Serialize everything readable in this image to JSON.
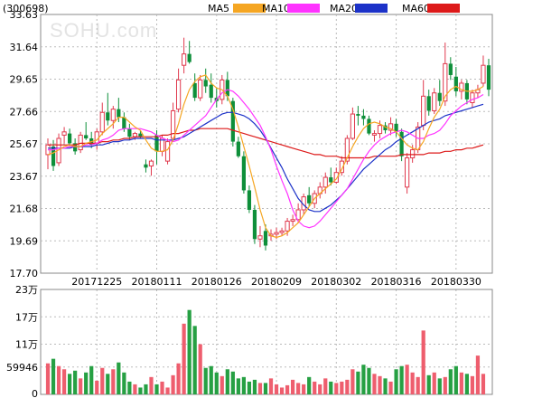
{
  "chart_data": {
    "type": "candlestick",
    "symbol": "(300698)",
    "watermark": "SOHU.com",
    "legend": [
      {
        "name": "MA5",
        "color": "#f5a623"
      },
      {
        "name": "MA10",
        "color": "#ff33ff"
      },
      {
        "name": "MA20",
        "color": "#1c32c8"
      },
      {
        "name": "MA60",
        "color": "#dd1a1a"
      }
    ],
    "colors": {
      "up": "#e0394d",
      "down": "#0e8f3a",
      "up_volume": "#ee5e6e",
      "down_volume": "#26a043"
    },
    "price_axis": {
      "ticks": [
        "33.63",
        "31.64",
        "29.65",
        "27.66",
        "25.67",
        "23.67",
        "21.68",
        "19.69",
        "17.70"
      ],
      "min": 17.7,
      "max": 33.63
    },
    "date_labels": [
      {
        "label": "20171225",
        "index": 9
      },
      {
        "label": "20180111",
        "index": 20
      },
      {
        "label": "20180126",
        "index": 31
      },
      {
        "label": "20180209",
        "index": 42
      },
      {
        "label": "20180302",
        "index": 53
      },
      {
        "label": "20180316",
        "index": 64
      },
      {
        "label": "20180330",
        "index": 75
      }
    ],
    "candles": [
      {
        "o": 25.0,
        "h": 26.0,
        "l": 24.1,
        "c": 25.6
      },
      {
        "o": 25.5,
        "h": 25.9,
        "l": 24.0,
        "c": 24.3
      },
      {
        "o": 24.5,
        "h": 26.3,
        "l": 24.3,
        "c": 26.0
      },
      {
        "o": 26.2,
        "h": 26.7,
        "l": 25.7,
        "c": 26.4
      },
      {
        "o": 26.3,
        "h": 26.6,
        "l": 25.5,
        "c": 25.7
      },
      {
        "o": 25.7,
        "h": 26.0,
        "l": 25.0,
        "c": 25.2
      },
      {
        "o": 25.3,
        "h": 26.4,
        "l": 25.1,
        "c": 26.2
      },
      {
        "o": 26.2,
        "h": 27.0,
        "l": 25.9,
        "c": 26.0
      },
      {
        "o": 26.0,
        "h": 26.4,
        "l": 25.4,
        "c": 25.6
      },
      {
        "o": 25.7,
        "h": 26.6,
        "l": 25.3,
        "c": 26.4
      },
      {
        "o": 26.4,
        "h": 28.2,
        "l": 26.2,
        "c": 27.6
      },
      {
        "o": 27.6,
        "h": 28.8,
        "l": 26.8,
        "c": 27.1
      },
      {
        "o": 27.1,
        "h": 28.0,
        "l": 26.6,
        "c": 27.8
      },
      {
        "o": 27.8,
        "h": 28.5,
        "l": 27.0,
        "c": 27.3
      },
      {
        "o": 27.3,
        "h": 27.6,
        "l": 26.4,
        "c": 26.6
      },
      {
        "o": 26.6,
        "h": 26.9,
        "l": 25.9,
        "c": 26.1
      },
      {
        "o": 26.1,
        "h": 26.4,
        "l": 25.9,
        "c": 26.3
      },
      {
        "o": 26.3,
        "h": 26.5,
        "l": 26.0,
        "c": 26.1
      },
      {
        "o": 24.4,
        "h": 24.7,
        "l": 23.9,
        "c": 24.2
      },
      {
        "o": 24.3,
        "h": 24.7,
        "l": 23.7,
        "c": 24.6
      },
      {
        "o": 26.2,
        "h": 26.5,
        "l": 24.4,
        "c": 25.2
      },
      {
        "o": 25.2,
        "h": 26.2,
        "l": 24.9,
        "c": 26.0
      },
      {
        "o": 24.6,
        "h": 26.0,
        "l": 24.4,
        "c": 25.8
      },
      {
        "o": 26.0,
        "h": 28.2,
        "l": 25.8,
        "c": 27.7
      },
      {
        "o": 27.8,
        "h": 30.3,
        "l": 27.6,
        "c": 29.6
      },
      {
        "o": 30.5,
        "h": 32.2,
        "l": 30.0,
        "c": 31.2
      },
      {
        "o": 31.2,
        "h": 32.0,
        "l": 30.6,
        "c": 30.7
      },
      {
        "o": 29.4,
        "h": 30.0,
        "l": 28.3,
        "c": 28.5
      },
      {
        "o": 28.5,
        "h": 29.9,
        "l": 28.3,
        "c": 29.6
      },
      {
        "o": 29.6,
        "h": 30.3,
        "l": 28.8,
        "c": 29.2
      },
      {
        "o": 29.3,
        "h": 30.0,
        "l": 28.2,
        "c": 28.5
      },
      {
        "o": 28.5,
        "h": 29.1,
        "l": 27.9,
        "c": 28.3
      },
      {
        "o": 28.4,
        "h": 29.9,
        "l": 28.1,
        "c": 29.6
      },
      {
        "o": 29.6,
        "h": 30.1,
        "l": 28.3,
        "c": 28.6
      },
      {
        "o": 28.3,
        "h": 28.5,
        "l": 25.5,
        "c": 25.8
      },
      {
        "o": 25.8,
        "h": 26.1,
        "l": 24.8,
        "c": 24.9
      },
      {
        "o": 24.9,
        "h": 25.2,
        "l": 22.6,
        "c": 22.8
      },
      {
        "o": 22.8,
        "h": 23.1,
        "l": 21.4,
        "c": 21.6
      },
      {
        "o": 21.6,
        "h": 21.9,
        "l": 19.5,
        "c": 19.8
      },
      {
        "o": 19.8,
        "h": 20.6,
        "l": 19.3,
        "c": 20.0
      },
      {
        "o": 20.3,
        "h": 20.7,
        "l": 19.1,
        "c": 19.4
      },
      {
        "o": 20.0,
        "h": 20.4,
        "l": 19.7,
        "c": 20.1
      },
      {
        "o": 20.1,
        "h": 20.5,
        "l": 19.8,
        "c": 20.2
      },
      {
        "o": 20.2,
        "h": 20.5,
        "l": 20.0,
        "c": 20.3
      },
      {
        "o": 20.3,
        "h": 21.1,
        "l": 20.0,
        "c": 20.9
      },
      {
        "o": 20.9,
        "h": 21.3,
        "l": 20.6,
        "c": 21.0
      },
      {
        "o": 21.0,
        "h": 22.0,
        "l": 20.8,
        "c": 21.6
      },
      {
        "o": 21.6,
        "h": 22.6,
        "l": 21.3,
        "c": 22.4
      },
      {
        "o": 22.5,
        "h": 23.0,
        "l": 21.8,
        "c": 22.0
      },
      {
        "o": 22.0,
        "h": 22.8,
        "l": 21.7,
        "c": 22.6
      },
      {
        "o": 22.6,
        "h": 23.3,
        "l": 22.3,
        "c": 23.0
      },
      {
        "o": 23.0,
        "h": 23.9,
        "l": 22.6,
        "c": 23.6
      },
      {
        "o": 23.6,
        "h": 24.2,
        "l": 23.1,
        "c": 23.3
      },
      {
        "o": 23.3,
        "h": 24.2,
        "l": 23.2,
        "c": 23.9
      },
      {
        "o": 23.9,
        "h": 24.9,
        "l": 23.7,
        "c": 24.6
      },
      {
        "o": 24.6,
        "h": 26.2,
        "l": 24.4,
        "c": 26.0
      },
      {
        "o": 26.0,
        "h": 27.9,
        "l": 25.9,
        "c": 27.5
      },
      {
        "o": 27.5,
        "h": 28.0,
        "l": 26.8,
        "c": 27.4
      },
      {
        "o": 27.4,
        "h": 27.8,
        "l": 26.8,
        "c": 27.2
      },
      {
        "o": 27.2,
        "h": 27.4,
        "l": 26.2,
        "c": 26.3
      },
      {
        "o": 26.2,
        "h": 26.5,
        "l": 25.8,
        "c": 26.3
      },
      {
        "o": 26.3,
        "h": 27.1,
        "l": 26.0,
        "c": 26.8
      },
      {
        "o": 26.8,
        "h": 27.0,
        "l": 26.3,
        "c": 26.5
      },
      {
        "o": 26.5,
        "h": 27.3,
        "l": 26.2,
        "c": 26.9
      },
      {
        "o": 26.9,
        "h": 27.2,
        "l": 26.1,
        "c": 26.4
      },
      {
        "o": 26.4,
        "h": 26.6,
        "l": 24.6,
        "c": 24.9
      },
      {
        "o": 23.0,
        "h": 25.1,
        "l": 22.6,
        "c": 24.8
      },
      {
        "o": 24.8,
        "h": 25.6,
        "l": 24.5,
        "c": 25.3
      },
      {
        "o": 25.3,
        "h": 27.0,
        "l": 25.1,
        "c": 26.7
      },
      {
        "o": 26.8,
        "h": 29.6,
        "l": 26.5,
        "c": 28.6
      },
      {
        "o": 28.6,
        "h": 29.0,
        "l": 27.4,
        "c": 27.7
      },
      {
        "o": 27.7,
        "h": 29.1,
        "l": 27.5,
        "c": 28.8
      },
      {
        "o": 28.8,
        "h": 29.6,
        "l": 28.0,
        "c": 28.3
      },
      {
        "o": 28.3,
        "h": 31.9,
        "l": 28.0,
        "c": 30.6
      },
      {
        "o": 30.6,
        "h": 31.0,
        "l": 29.6,
        "c": 29.9
      },
      {
        "o": 29.8,
        "h": 30.4,
        "l": 28.6,
        "c": 28.9
      },
      {
        "o": 28.9,
        "h": 29.6,
        "l": 28.4,
        "c": 29.4
      },
      {
        "o": 29.4,
        "h": 29.6,
        "l": 28.1,
        "c": 28.4
      },
      {
        "o": 28.2,
        "h": 29.0,
        "l": 27.9,
        "c": 28.8
      },
      {
        "o": 28.8,
        "h": 29.3,
        "l": 28.5,
        "c": 29.0
      },
      {
        "o": 29.4,
        "h": 31.1,
        "l": 29.2,
        "c": 30.5
      },
      {
        "o": 30.5,
        "h": 30.9,
        "l": 28.6,
        "c": 29.0
      }
    ],
    "ma5": [
      25.0,
      25.1,
      25.3,
      25.5,
      25.6,
      25.5,
      25.5,
      25.7,
      25.8,
      25.9,
      26.3,
      26.6,
      26.9,
      27.3,
      27.3,
      27.0,
      26.7,
      26.5,
      25.9,
      25.4,
      25.2,
      25.2,
      25.3,
      25.9,
      26.9,
      28.1,
      29.0,
      29.5,
      29.8,
      29.9,
      29.4,
      29.1,
      29.0,
      28.6,
      27.8,
      26.7,
      25.5,
      24.3,
      23.0,
      21.6,
      20.5,
      20.0,
      19.9,
      20.0,
      20.2,
      20.5,
      20.8,
      21.3,
      21.8,
      22.3,
      22.6,
      22.9,
      23.2,
      23.5,
      24.1,
      24.8,
      25.5,
      26.1,
      26.6,
      26.9,
      27.0,
      26.9,
      26.7,
      26.6,
      26.4,
      26.0,
      25.6,
      25.4,
      25.3,
      25.8,
      26.6,
      27.3,
      27.8,
      28.6,
      29.0,
      29.2,
      29.0,
      28.9,
      28.9,
      29.0,
      29.2
    ],
    "ma10": [
      25.3,
      25.3,
      25.4,
      25.4,
      25.5,
      25.5,
      25.5,
      25.6,
      25.6,
      25.7,
      25.9,
      26.0,
      26.2,
      26.5,
      26.6,
      26.6,
      26.6,
      26.6,
      26.5,
      26.4,
      26.2,
      26.0,
      25.9,
      25.8,
      25.9,
      26.2,
      26.5,
      26.8,
      27.1,
      27.4,
      27.9,
      28.4,
      28.8,
      29.0,
      28.9,
      28.6,
      28.2,
      27.8,
      27.3,
      26.8,
      26.1,
      25.3,
      24.3,
      23.4,
      22.6,
      21.6,
      20.9,
      20.6,
      20.5,
      20.6,
      20.9,
      21.3,
      21.7,
      22.1,
      22.5,
      22.9,
      23.5,
      24.1,
      24.7,
      25.2,
      25.6,
      25.9,
      26.1,
      26.3,
      26.4,
      26.5,
      26.4,
      26.2,
      26.0,
      26.0,
      26.2,
      26.3,
      26.5,
      26.9,
      27.4,
      27.7,
      28.0,
      28.2,
      28.4,
      28.5,
      28.7
    ],
    "ma20": [
      25.4,
      25.4,
      25.4,
      25.4,
      25.4,
      25.5,
      25.5,
      25.5,
      25.5,
      25.6,
      25.6,
      25.7,
      25.8,
      25.8,
      25.9,
      25.9,
      26.0,
      26.0,
      26.0,
      26.0,
      25.9,
      25.9,
      25.9,
      25.9,
      26.0,
      26.1,
      26.3,
      26.5,
      26.7,
      26.9,
      27.1,
      27.3,
      27.5,
      27.6,
      27.6,
      27.5,
      27.4,
      27.2,
      26.9,
      26.5,
      26.0,
      25.4,
      24.8,
      24.2,
      23.5,
      22.9,
      22.3,
      21.9,
      21.6,
      21.5,
      21.5,
      21.7,
      21.9,
      22.2,
      22.5,
      22.9,
      23.3,
      23.7,
      24.1,
      24.4,
      24.7,
      25.0,
      25.3,
      25.5,
      25.8,
      26.0,
      26.2,
      26.4,
      26.6,
      26.8,
      27.0,
      27.1,
      27.2,
      27.4,
      27.5,
      27.6,
      27.7,
      27.8,
      27.9,
      28.0,
      28.1
    ],
    "ma60": [
      25.6,
      25.6,
      25.6,
      25.6,
      25.6,
      25.6,
      25.7,
      25.7,
      25.7,
      25.7,
      25.8,
      25.8,
      25.9,
      25.9,
      26.0,
      26.0,
      26.1,
      26.1,
      26.1,
      26.1,
      26.1,
      26.2,
      26.2,
      26.3,
      26.3,
      26.4,
      26.5,
      26.5,
      26.6,
      26.6,
      26.6,
      26.6,
      26.6,
      26.6,
      26.5,
      26.4,
      26.3,
      26.2,
      26.1,
      26.0,
      25.9,
      25.8,
      25.7,
      25.6,
      25.5,
      25.4,
      25.3,
      25.2,
      25.1,
      25.0,
      25.0,
      24.9,
      24.9,
      24.9,
      24.8,
      24.8,
      24.8,
      24.8,
      24.8,
      24.8,
      24.9,
      24.9,
      24.9,
      24.9,
      24.9,
      25.0,
      25.0,
      25.0,
      25.0,
      25.0,
      25.1,
      25.1,
      25.1,
      25.2,
      25.2,
      25.3,
      25.3,
      25.4,
      25.4,
      25.5,
      25.6
    ],
    "volume_axis": {
      "ticks": [
        "23万",
        "17万",
        "11万",
        "59946",
        "0"
      ],
      "tick_values": [
        230000,
        170000,
        110000,
        59946,
        0
      ],
      "max": 230000
    },
    "volumes": [
      68000,
      78000,
      62000,
      55000,
      45000,
      52000,
      35000,
      48000,
      62000,
      30000,
      58000,
      45000,
      55000,
      70000,
      48000,
      28000,
      22000,
      15000,
      22000,
      38000,
      22000,
      28000,
      15000,
      42000,
      68000,
      155000,
      185000,
      150000,
      110000,
      58000,
      62000,
      48000,
      40000,
      55000,
      50000,
      35000,
      38000,
      28000,
      32000,
      25000,
      25000,
      35000,
      22000,
      15000,
      20000,
      32000,
      25000,
      22000,
      38000,
      28000,
      22000,
      35000,
      28000,
      25000,
      28000,
      32000,
      55000,
      50000,
      65000,
      58000,
      45000,
      40000,
      35000,
      28000,
      55000,
      62000,
      65000,
      48000,
      38000,
      140000,
      42000,
      48000,
      35000,
      38000,
      55000,
      62000,
      48000,
      45000,
      40000,
      85000,
      45000
    ]
  }
}
